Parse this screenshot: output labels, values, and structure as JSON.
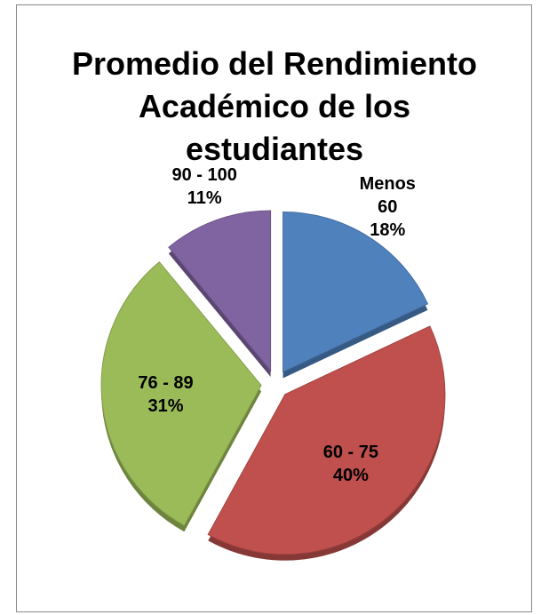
{
  "chart_data": {
    "type": "pie",
    "title": "Promedio del Rendimiento Académico de los estudiantes",
    "categories": [
      "Menos 60",
      "60 - 75",
      "76 - 89",
      "90 - 100"
    ],
    "values": [
      18,
      40,
      31,
      11
    ],
    "value_labels": [
      "18%",
      "40%",
      "31%",
      "11%"
    ],
    "colors": [
      "#4f81bd",
      "#c0504d",
      "#9bbb59",
      "#8064a2"
    ]
  }
}
